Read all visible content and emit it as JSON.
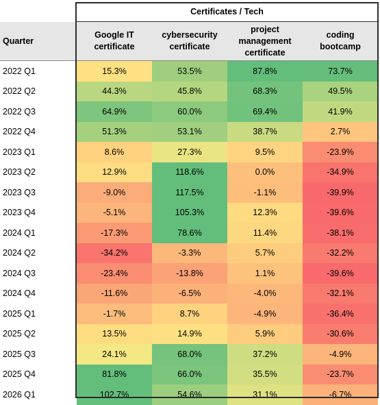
{
  "table": {
    "group_header": "Certificates / Tech",
    "row_header": "Quarter",
    "columns": [
      "Google IT certificate",
      "cybersecurity certificate",
      "project management certificate",
      "coding bootcamp"
    ]
  },
  "chart_data": {
    "type": "heatmap",
    "title": "",
    "columns": [
      "Google IT certificate",
      "cybersecurity certificate",
      "project management certificate",
      "coding bootcamp"
    ],
    "color_scale": {
      "low": "#f8696b",
      "mid": "#ffeb84",
      "high": "#63be7b"
    },
    "rows": [
      {
        "label": "2022 Q1",
        "values": [
          15.3,
          53.5,
          87.8,
          73.7
        ],
        "display": [
          "15.3%",
          "53.5%",
          "87.8%",
          "73.7%"
        ]
      },
      {
        "label": "2022 Q2",
        "values": [
          44.3,
          45.8,
          68.3,
          49.5
        ],
        "display": [
          "44.3%",
          "45.8%",
          "68.3%",
          "49.5%"
        ]
      },
      {
        "label": "2022 Q3",
        "values": [
          64.9,
          60.0,
          69.4,
          41.9
        ],
        "display": [
          "64.9%",
          "60.0%",
          "69.4%",
          "41.9%"
        ]
      },
      {
        "label": "2022 Q4",
        "values": [
          51.3,
          53.1,
          38.7,
          2.7
        ],
        "display": [
          "51.3%",
          "53.1%",
          "38.7%",
          "2.7%"
        ]
      },
      {
        "label": "2023 Q1",
        "values": [
          8.6,
          27.3,
          9.5,
          -23.9
        ],
        "display": [
          "8.6%",
          "27.3%",
          "9.5%",
          "-23.9%"
        ]
      },
      {
        "label": "2023 Q2",
        "values": [
          12.9,
          118.6,
          0.0,
          -34.9
        ],
        "display": [
          "12.9%",
          "118.6%",
          "0.0%",
          "-34.9%"
        ]
      },
      {
        "label": "2023 Q3",
        "values": [
          -9.0,
          117.5,
          -1.1,
          -39.9
        ],
        "display": [
          "-9.0%",
          "117.5%",
          "-1.1%",
          "-39.9%"
        ]
      },
      {
        "label": "2023 Q4",
        "values": [
          -5.1,
          105.3,
          12.3,
          -39.6
        ],
        "display": [
          "-5.1%",
          "105.3%",
          "12.3%",
          "-39.6%"
        ]
      },
      {
        "label": "2024 Q1",
        "values": [
          -17.3,
          78.6,
          11.4,
          -38.1
        ],
        "display": [
          "-17.3%",
          "78.6%",
          "11.4%",
          "-38.1%"
        ]
      },
      {
        "label": "2024 Q2",
        "values": [
          -34.2,
          -3.3,
          5.7,
          -32.2
        ],
        "display": [
          "-34.2%",
          "-3.3%",
          "5.7%",
          "-32.2%"
        ]
      },
      {
        "label": "2024 Q3",
        "values": [
          -23.4,
          -13.8,
          1.1,
          -39.6
        ],
        "display": [
          "-23.4%",
          "-13.8%",
          "1.1%",
          "-39.6%"
        ]
      },
      {
        "label": "2024 Q4",
        "values": [
          -11.6,
          -6.5,
          -4.0,
          -32.1
        ],
        "display": [
          "-11.6%",
          "-6.5%",
          "-4.0%",
          "-32.1%"
        ]
      },
      {
        "label": "2025 Q1",
        "values": [
          -1.7,
          8.7,
          -4.9,
          -36.4
        ],
        "display": [
          "-1.7%",
          "8.7%",
          "-4.9%",
          "-36.4%"
        ]
      },
      {
        "label": "2025 Q2",
        "values": [
          13.5,
          14.9,
          5.9,
          -30.6
        ],
        "display": [
          "13.5%",
          "14.9%",
          "5.9%",
          "-30.6%"
        ]
      },
      {
        "label": "2025 Q3",
        "values": [
          24.1,
          68.0,
          37.2,
          -4.9
        ],
        "display": [
          "24.1%",
          "68.0%",
          "37.2%",
          "-4.9%"
        ]
      },
      {
        "label": "2025 Q4",
        "values": [
          81.8,
          66.0,
          35.5,
          -23.7
        ],
        "display": [
          "81.8%",
          "66.0%",
          "35.5%",
          "-23.7%"
        ]
      },
      {
        "label": "2026 Q1",
        "values": [
          102.7,
          54.6,
          31.1,
          -6.7
        ],
        "display": [
          "102.7%",
          "54.6%",
          "31.1%",
          "-6.7%"
        ]
      }
    ]
  }
}
